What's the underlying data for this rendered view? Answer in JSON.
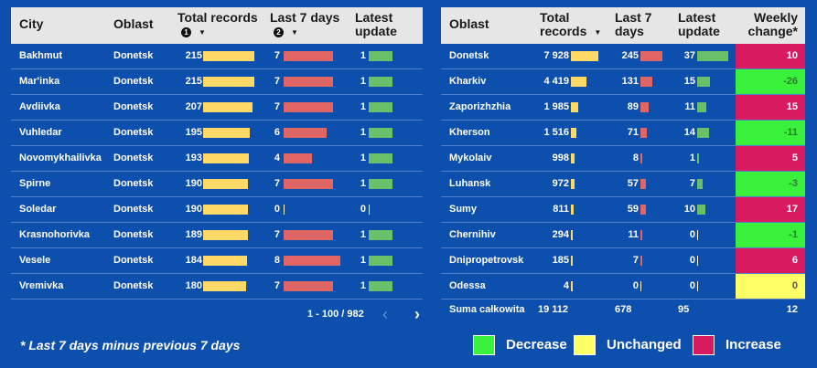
{
  "colors": {
    "background": "#0d4fad",
    "increase": "#d81b60",
    "decrease": "#39f13b",
    "unchanged": "#ffff66",
    "bar_total": "#ffd966",
    "bar_last7": "#e06666",
    "bar_latest": "#6abf69"
  },
  "left_table": {
    "headers": {
      "city": "City",
      "oblast": "Oblast",
      "total": "Total records",
      "total_badge": "1",
      "last7": "Last 7 days",
      "last7_badge": "2",
      "latest": "Latest update"
    },
    "rows": [
      {
        "city": "Bakhmut",
        "oblast": "Donetsk",
        "total": 215,
        "last7": 7,
        "latest": 1
      },
      {
        "city": "Mar'inka",
        "oblast": "Donetsk",
        "total": 215,
        "last7": 7,
        "latest": 1
      },
      {
        "city": "Avdiivka",
        "oblast": "Donetsk",
        "total": 207,
        "last7": 7,
        "latest": 1
      },
      {
        "city": "Vuhledar",
        "oblast": "Donetsk",
        "total": 195,
        "last7": 6,
        "latest": 1
      },
      {
        "city": "Novomykhailivka",
        "oblast": "Donetsk",
        "total": 193,
        "last7": 4,
        "latest": 1
      },
      {
        "city": "Spirne",
        "oblast": "Donetsk",
        "total": 190,
        "last7": 7,
        "latest": 1
      },
      {
        "city": "Soledar",
        "oblast": "Donetsk",
        "total": 190,
        "last7": 0,
        "latest": 0
      },
      {
        "city": "Krasnohorivka",
        "oblast": "Donetsk",
        "total": 189,
        "last7": 7,
        "latest": 1
      },
      {
        "city": "Vesele",
        "oblast": "Donetsk",
        "total": 184,
        "last7": 8,
        "latest": 1
      },
      {
        "city": "Vremivka",
        "oblast": "Donetsk",
        "total": 180,
        "last7": 7,
        "latest": 1
      }
    ],
    "pager": "1 - 100 / 982",
    "prev_icon": "chevron-left-icon",
    "next_icon": "chevron-right-icon"
  },
  "right_table": {
    "headers": {
      "oblast": "Oblast",
      "total": "Total records",
      "last7": "Last 7 days",
      "latest": "Latest update",
      "weekly": "Weekly change*"
    },
    "rows": [
      {
        "oblast": "Donetsk",
        "total": "7 928",
        "total_value": 7928,
        "last7": 245,
        "latest": 37,
        "weekly": "10",
        "status": "increase"
      },
      {
        "oblast": "Kharkiv",
        "total": "4 419",
        "total_value": 4419,
        "last7": 131,
        "latest": 15,
        "weekly": "-26",
        "status": "decrease"
      },
      {
        "oblast": "Zaporizhzhia",
        "total": "1 985",
        "total_value": 1985,
        "last7": 89,
        "latest": 11,
        "weekly": "15",
        "status": "increase"
      },
      {
        "oblast": "Kherson",
        "total": "1 516",
        "total_value": 1516,
        "last7": 71,
        "latest": 14,
        "weekly": "-11",
        "status": "decrease"
      },
      {
        "oblast": "Mykolaiv",
        "total": "998",
        "total_value": 998,
        "last7": 8,
        "latest": 1,
        "weekly": "5",
        "status": "increase"
      },
      {
        "oblast": "Luhansk",
        "total": "972",
        "total_value": 972,
        "last7": 57,
        "latest": 7,
        "weekly": "-3",
        "status": "decrease"
      },
      {
        "oblast": "Sumy",
        "total": "811",
        "total_value": 811,
        "last7": 59,
        "latest": 10,
        "weekly": "17",
        "status": "increase"
      },
      {
        "oblast": "Chernihiv",
        "total": "294",
        "total_value": 294,
        "last7": 11,
        "latest": 0,
        "weekly": "-1",
        "status": "decrease"
      },
      {
        "oblast": "Dnipropetrovsk",
        "total": "185",
        "total_value": 185,
        "last7": 7,
        "latest": 0,
        "weekly": "6",
        "status": "increase"
      },
      {
        "oblast": "Odessa",
        "total": "4",
        "total_value": 4,
        "last7": 0,
        "latest": 0,
        "weekly": "0",
        "status": "unchanged"
      }
    ],
    "totals": {
      "label": "Suma całkowita",
      "total": "19 112",
      "last7": "678",
      "latest": "95",
      "weekly": "12"
    }
  },
  "footnote": "* Last 7 days minus previous 7 days",
  "legend": [
    {
      "label": "Decrease",
      "status": "decrease"
    },
    {
      "label": "Unchanged",
      "status": "unchanged"
    },
    {
      "label": "Increase",
      "status": "increase"
    }
  ]
}
